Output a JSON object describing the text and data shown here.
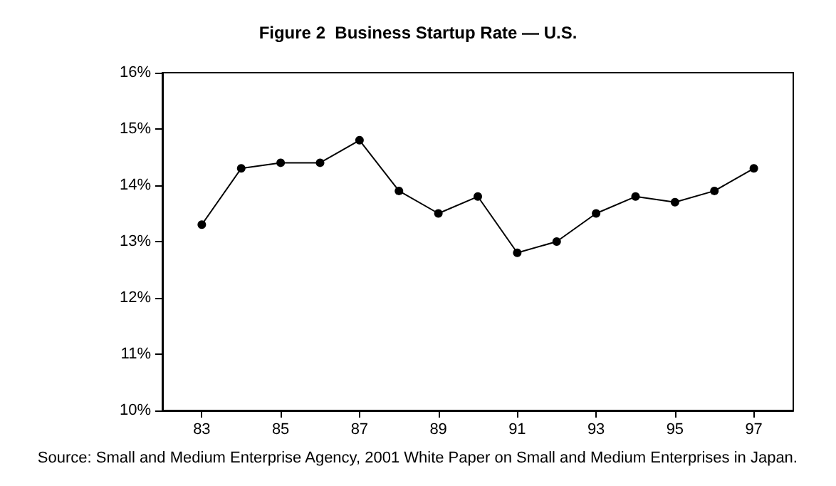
{
  "chart_data": {
    "type": "line",
    "title": "Figure 2  Business Startup Rate — U.S.",
    "x": [
      83,
      84,
      85,
      86,
      87,
      88,
      89,
      90,
      91,
      92,
      93,
      94,
      95,
      96,
      97
    ],
    "series": [
      {
        "color": "#000000",
        "values": [
          13.3,
          14.3,
          14.4,
          14.4,
          14.8,
          13.9,
          13.5,
          13.8,
          12.8,
          13.0,
          13.5,
          13.8,
          13.7,
          13.9,
          14.3
        ]
      }
    ],
    "xlim": [
      82,
      98
    ],
    "xticks": [
      83,
      85,
      87,
      89,
      91,
      93,
      95,
      97
    ],
    "ylim": [
      10,
      16
    ],
    "yticks": [
      {
        "value": 10,
        "label": "10%"
      },
      {
        "value": 11,
        "label": "11%"
      },
      {
        "value": 12,
        "label": "12%"
      },
      {
        "value": 13,
        "label": "13%"
      },
      {
        "value": 14,
        "label": "14%"
      },
      {
        "value": 15,
        "label": "15%"
      },
      {
        "value": 16,
        "label": "16%"
      }
    ],
    "annotations": [
      "Source: Small and Medium Enterprise Agency, 2001 White Paper on Small and Medium Enterprises in Japan."
    ],
    "grid": false,
    "marker": "circle",
    "line_style": "solid"
  }
}
